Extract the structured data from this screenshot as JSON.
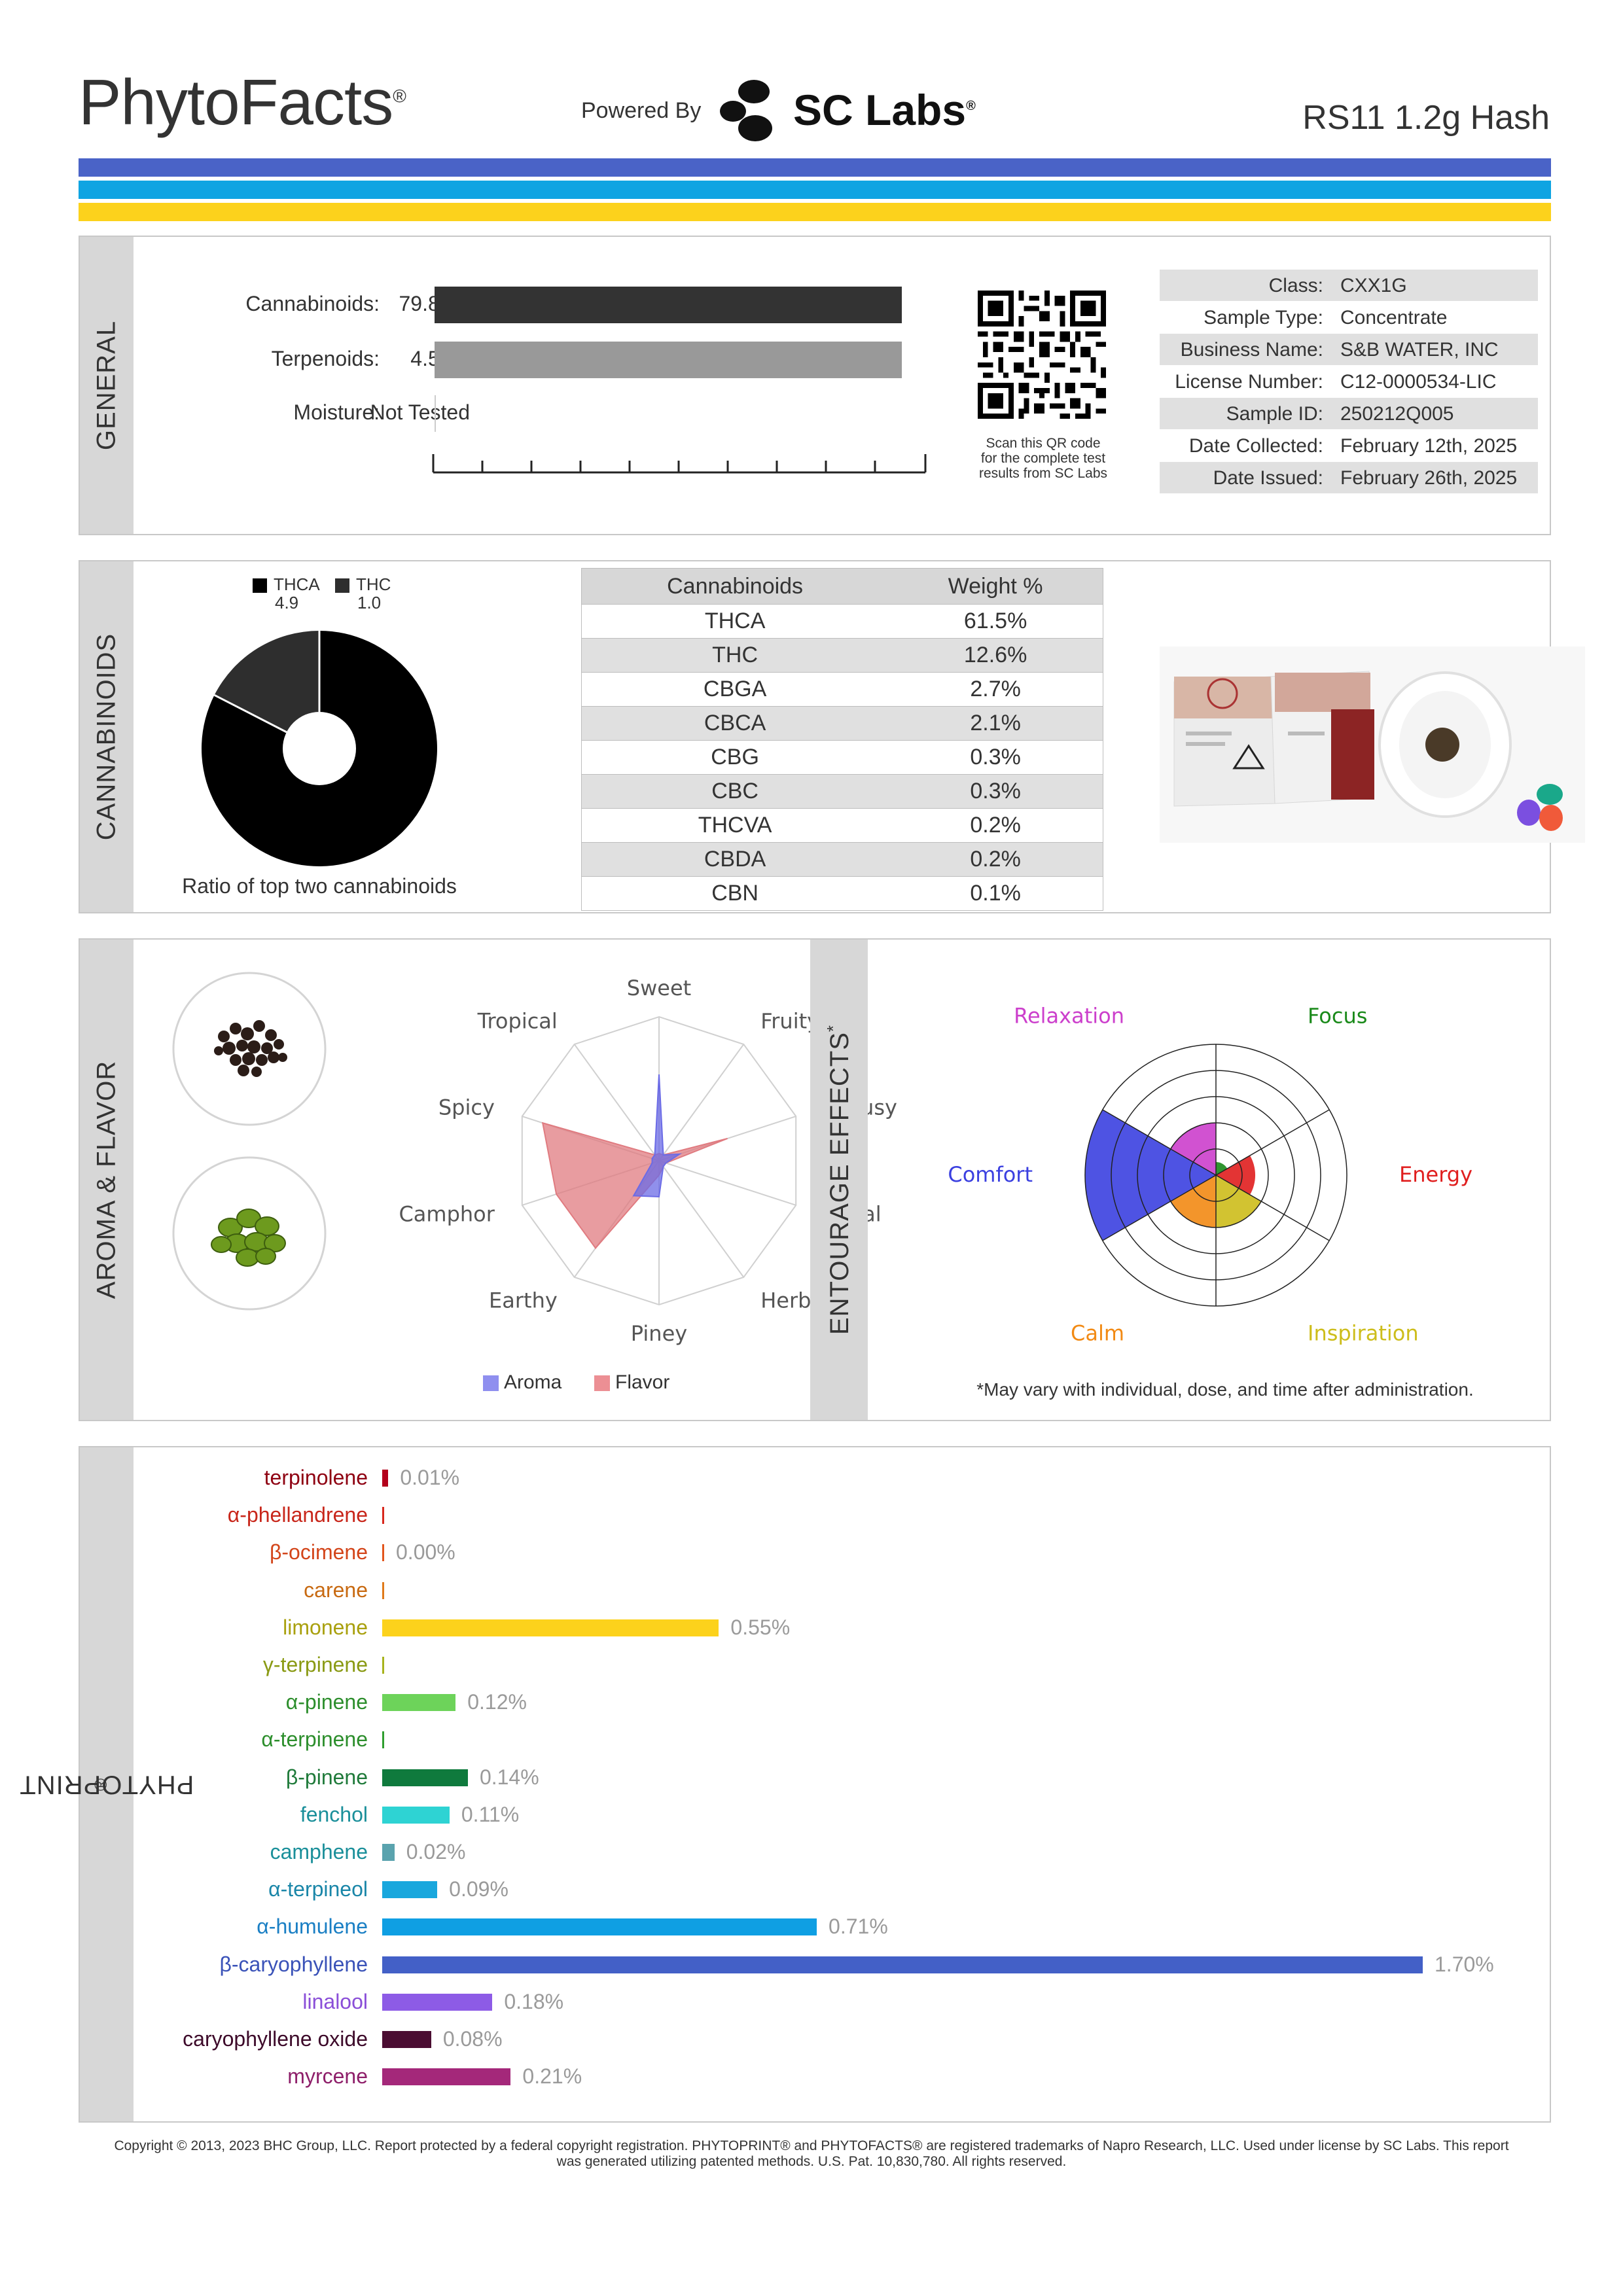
{
  "header": {
    "brand": "PhytoFacts",
    "brand_mark": "®",
    "powered_by": "Powered By",
    "lab_name": "SC Labs",
    "lab_mark": "®",
    "product": "RS11 1.2g Hash",
    "stripe_colors": [
      "#4a63c7",
      "#0fa4e2",
      "#fcd21c"
    ]
  },
  "general": {
    "tab": "GENERAL",
    "rows": [
      {
        "label": "Cannabinoids:",
        "value": "79.84%",
        "fraction": 0.95,
        "color": "#333333"
      },
      {
        "label": "Terpenoids:",
        "value": "4.53%",
        "fraction": 0.95,
        "color": "#999999"
      },
      {
        "label": "Moisture:",
        "value": "Not Tested",
        "fraction": 0,
        "color": "#cccccc"
      }
    ],
    "qr_caption": [
      "Scan this QR code",
      "for the complete test",
      "results from SC Labs"
    ],
    "info": [
      {
        "key": "Class:",
        "value": "CXX1G"
      },
      {
        "key": "Sample Type:",
        "value": "Concentrate"
      },
      {
        "key": "Business Name:",
        "value": "S&B WATER, INC"
      },
      {
        "key": "License Number:",
        "value": "C12-0000534-LIC"
      },
      {
        "key": "Sample ID:",
        "value": "250212Q005"
      },
      {
        "key": "Date Collected:",
        "value": "February 12th, 2025"
      },
      {
        "key": "Date Issued:",
        "value": "February 26th, 2025"
      }
    ]
  },
  "cannabinoids": {
    "tab": "CANNABINOIDS",
    "legend": [
      {
        "name": "THCA",
        "ratio": "4.9",
        "color": "#000000"
      },
      {
        "name": "THC",
        "ratio": "1.0",
        "color": "#2e2e2e"
      }
    ],
    "donut_caption": "Ratio of top two cannabinoids",
    "table_headers": [
      "Cannabinoids",
      "Weight %"
    ],
    "table_rows": [
      [
        "THCA",
        "61.5%"
      ],
      [
        "THC",
        "12.6%"
      ],
      [
        "CBGA",
        "2.7%"
      ],
      [
        "CBCA",
        "2.1%"
      ],
      [
        "CBG",
        "0.3%"
      ],
      [
        "CBC",
        "0.3%"
      ],
      [
        "THCVA",
        "0.2%"
      ],
      [
        "CBDA",
        "0.2%"
      ],
      [
        "CBN",
        "0.1%"
      ]
    ]
  },
  "aroma": {
    "tab": "AROMA & FLAVOR",
    "icons": [
      "black-pepper-icon",
      "hops-icon"
    ],
    "chart_data": {
      "type": "radar",
      "axes": [
        "Sweet",
        "Fruity",
        "Citrusy",
        "Floral",
        "Herbal",
        "Piney",
        "Earthy",
        "Camphor",
        "Spicy",
        "Tropical"
      ],
      "series": [
        {
          "name": "Aroma",
          "color": "#6b6be6",
          "values": [
            0.6,
            0.05,
            0.15,
            0.05,
            0.05,
            0.25,
            0.3,
            0.05,
            0.05,
            0.05
          ]
        },
        {
          "name": "Flavor",
          "color": "#e07b80",
          "values": [
            0.05,
            0.05,
            0.5,
            0.05,
            0.05,
            0.1,
            0.75,
            0.75,
            0.85,
            0.05
          ]
        }
      ],
      "rmax": 1
    }
  },
  "effects": {
    "tab": "ENTOURAGE EFFECTS",
    "tab_mark": "*",
    "note": "*May vary with individual, dose, and time after administration.",
    "chart_data": {
      "type": "polar-area",
      "rmax": 1,
      "categories": [
        {
          "name": "Focus",
          "value": 0.1,
          "color": "#1a8a1a"
        },
        {
          "name": "Energy",
          "value": 0.3,
          "color": "#e01e1e"
        },
        {
          "name": "Inspiration",
          "value": 0.4,
          "color": "#cdbd1b"
        },
        {
          "name": "Calm",
          "value": 0.4,
          "color": "#f28a14"
        },
        {
          "name": "Comfort",
          "value": 1.0,
          "color": "#3b40e0"
        },
        {
          "name": "Relaxation",
          "value": 0.4,
          "color": "#cc3fcc"
        }
      ]
    }
  },
  "phytoprint": {
    "tab": "PHYTOPRINT",
    "tab_mark": "®",
    "chart_data": {
      "type": "bar",
      "orientation": "horizontal",
      "unit": "%",
      "xmax": 1.7,
      "bars": [
        {
          "name": "terpinolene",
          "value": 0.01,
          "label": "0.01%",
          "color": "#b3001b"
        },
        {
          "name": "α-phellandrene",
          "value": 0.0,
          "label": "",
          "color": "#d8281c"
        },
        {
          "name": "β-ocimene",
          "value": 0.0,
          "label": "0.00%",
          "color": "#e2551c"
        },
        {
          "name": "carene",
          "value": 0.0,
          "label": "",
          "color": "#e07a1a"
        },
        {
          "name": "limonene",
          "value": 0.55,
          "label": "0.55%",
          "color": "#fcd21c"
        },
        {
          "name": "γ-terpinene",
          "value": 0.0,
          "label": "",
          "color": "#a7b31c"
        },
        {
          "name": "α-pinene",
          "value": 0.12,
          "label": "0.12%",
          "color": "#6dd35a"
        },
        {
          "name": "α-terpinene",
          "value": 0.0,
          "label": "",
          "color": "#2f9e2f"
        },
        {
          "name": "β-pinene",
          "value": 0.14,
          "label": "0.14%",
          "color": "#0f7a3d"
        },
        {
          "name": "fenchol",
          "value": 0.11,
          "label": "0.11%",
          "color": "#2ed3d3"
        },
        {
          "name": "camphene",
          "value": 0.02,
          "label": "0.02%",
          "color": "#5aa3ae"
        },
        {
          "name": "α-terpineol",
          "value": 0.09,
          "label": "0.09%",
          "color": "#19a7dd"
        },
        {
          "name": "α-humulene",
          "value": 0.71,
          "label": "0.71%",
          "color": "#0f9fe3"
        },
        {
          "name": "β-caryophyllene",
          "value": 1.7,
          "label": "1.70%",
          "color": "#4360c7"
        },
        {
          "name": "linalool",
          "value": 0.18,
          "label": "0.18%",
          "color": "#8d5be6"
        },
        {
          "name": "caryophyllene oxide",
          "value": 0.08,
          "label": "0.08%",
          "color": "#4b0d32"
        },
        {
          "name": "myrcene",
          "value": 0.21,
          "label": "0.21%",
          "color": "#a4287a"
        }
      ],
      "label_colors": [
        "#8e0011",
        "#c8261a",
        "#d3451a",
        "#c86a12",
        "#a9a00e",
        "#8a9a14",
        "#2c8e2c",
        "#2c8e2c",
        "#1f7a3a",
        "#1a8f9a",
        "#1a8f9a",
        "#1a86a8",
        "#1a7fc4",
        "#3a52b8",
        "#8a4ed8",
        "#3d0a2a",
        "#8e1f6a"
      ]
    }
  },
  "footer": {
    "line1": "Copyright © 2013, 2023 BHC Group, LLC. Report protected by a federal copyright registration. PHYTOPRINT® and PHYTOFACTS® are registered trademarks of Napro Research, LLC. Used under license by SC Labs. This report",
    "line2": "was generated utilizing patented methods. U.S. Pat. 10,830,780. All rights reserved."
  }
}
